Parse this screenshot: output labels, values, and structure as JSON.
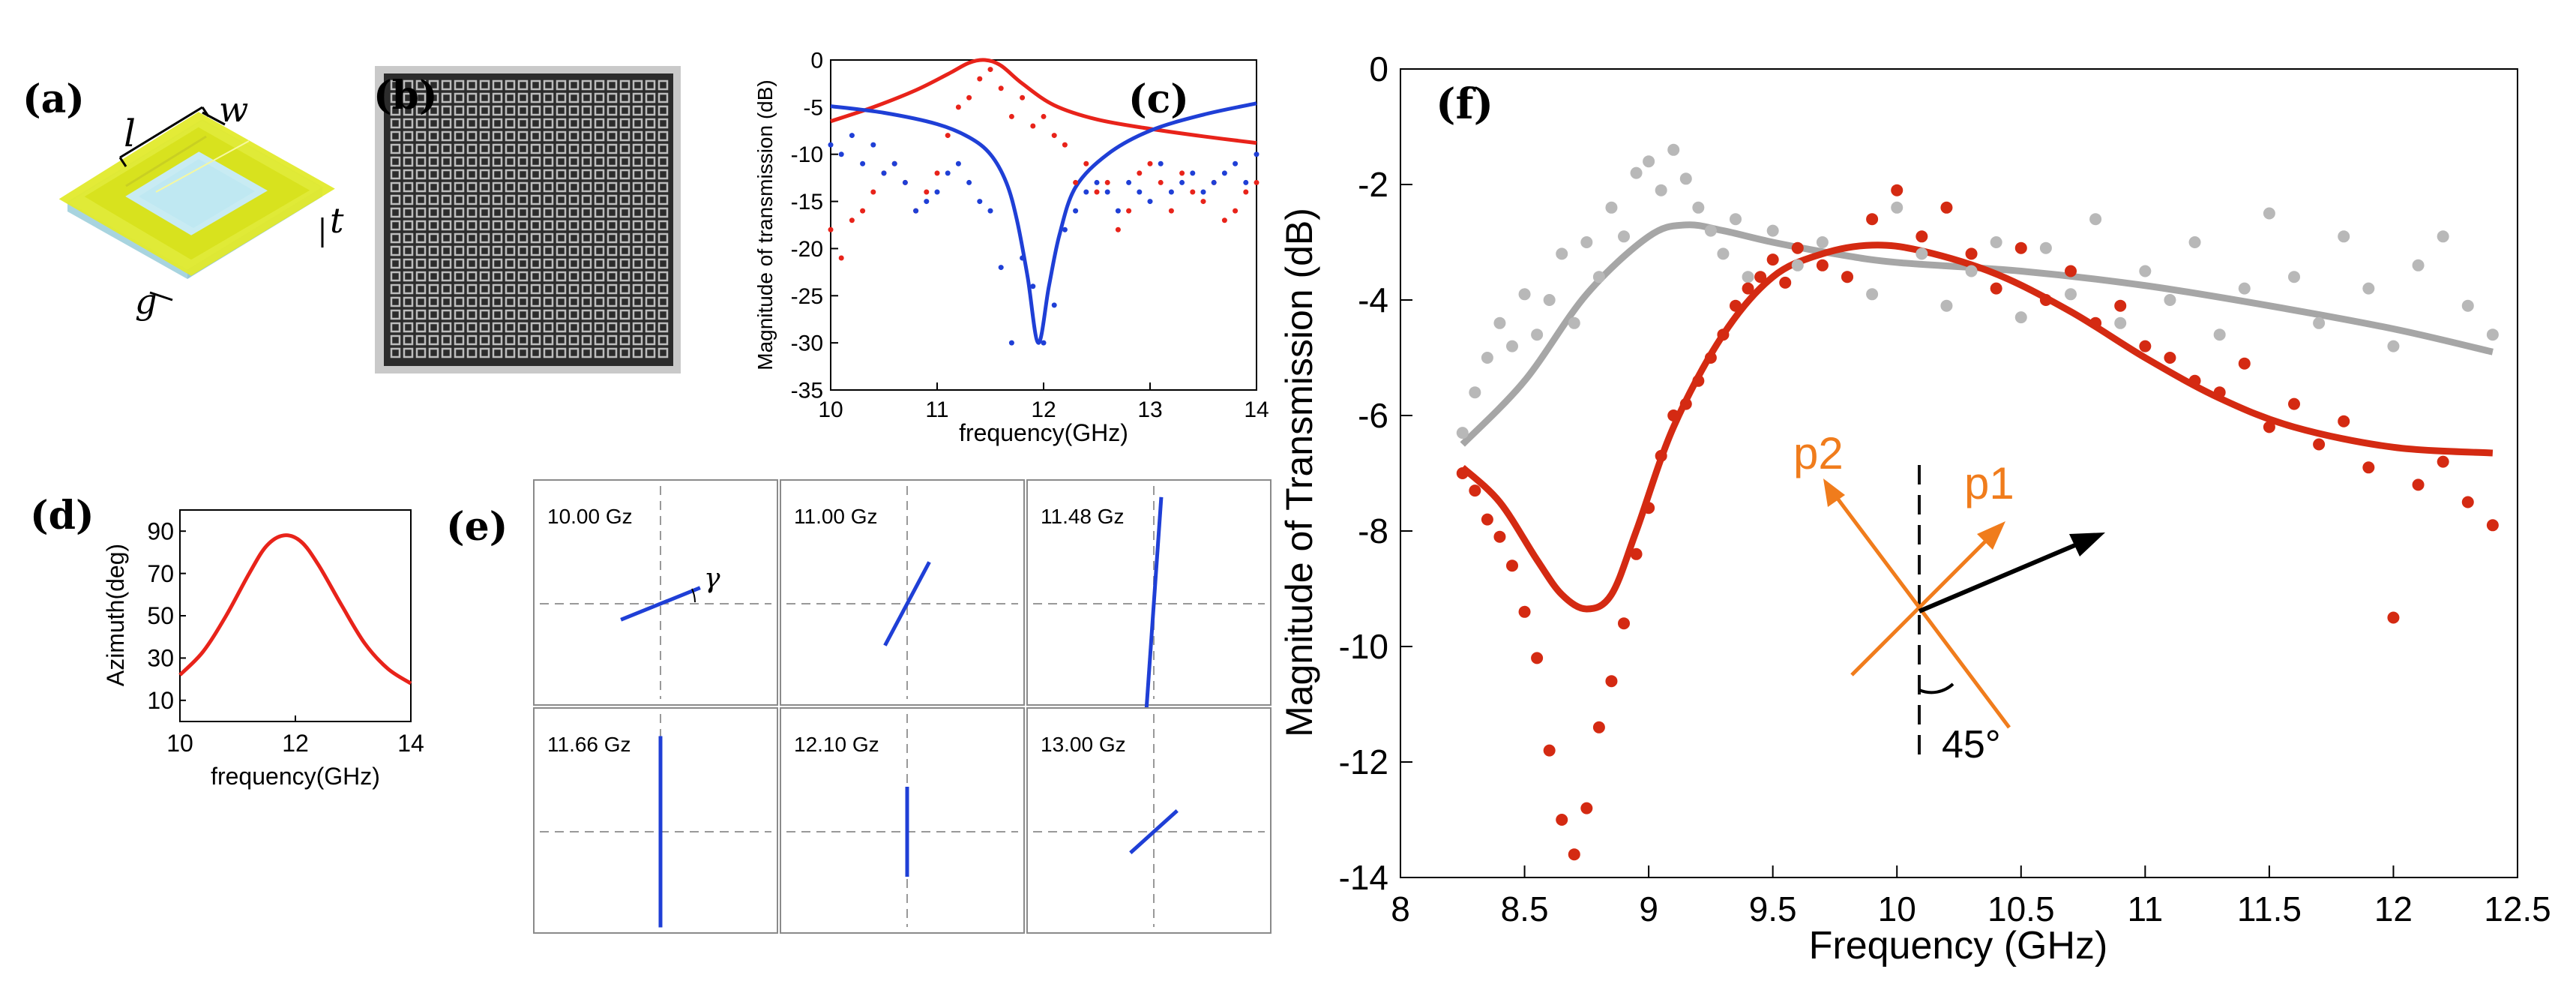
{
  "panels": {
    "a": {
      "label": "(a)",
      "dims": {
        "l": "l",
        "w": "w",
        "t": "t",
        "g": "g"
      }
    },
    "b": {
      "label": "(b)"
    },
    "c": {
      "label": "(c)"
    },
    "d": {
      "label": "(d)"
    },
    "e": {
      "label": "(e)",
      "gamma": "γ"
    },
    "f": {
      "label": "(f)",
      "p1": "p1",
      "p2": "p2",
      "angle": "45°"
    }
  },
  "chart_data": [
    {
      "id": "c",
      "type": "line",
      "xlabel": "frequency(GHz)",
      "ylabel": "Magnitude of transmission (dB)",
      "xlim": [
        10,
        14
      ],
      "ylim": [
        -35,
        0
      ],
      "xticks": [
        10,
        11,
        12,
        13,
        14
      ],
      "yticks": [
        0,
        -5,
        -10,
        -15,
        -20,
        -25,
        -30,
        -35
      ],
      "series": [
        {
          "name": "red-fit",
          "color": "#e8231a",
          "style": "line",
          "x": [
            10,
            10.4,
            10.8,
            11.1,
            11.3,
            11.45,
            11.6,
            11.8,
            12.1,
            12.5,
            13,
            13.5,
            14
          ],
          "y": [
            -6.5,
            -5,
            -3.2,
            -1.5,
            -0.3,
            0,
            -0.6,
            -2.5,
            -4.8,
            -6.3,
            -7.3,
            -8.1,
            -8.8
          ]
        },
        {
          "name": "blue-fit",
          "color": "#1f3fd6",
          "style": "line",
          "x": [
            10,
            10.5,
            11,
            11.3,
            11.5,
            11.65,
            11.75,
            11.85,
            11.95,
            12.05,
            12.15,
            12.3,
            12.6,
            13,
            13.5,
            14
          ],
          "y": [
            -4.9,
            -5.6,
            -6.8,
            -8.2,
            -10,
            -13,
            -17,
            -23,
            -30,
            -24,
            -18.5,
            -13.5,
            -10,
            -7.5,
            -5.8,
            -4.6
          ]
        },
        {
          "name": "red-measured",
          "color": "#e8231a",
          "style": "dots",
          "x": [
            10.0,
            10.1,
            10.2,
            10.3,
            10.4,
            10.5,
            10.6,
            10.7,
            10.8,
            10.9,
            11.0,
            11.1,
            11.2,
            11.3,
            11.4,
            11.5,
            11.6,
            11.7,
            11.8,
            11.9,
            12.0,
            12.1,
            12.2,
            12.3,
            12.4,
            12.5,
            12.6,
            12.7,
            12.8,
            12.9,
            13.0,
            13.1,
            13.2,
            13.3,
            13.4,
            13.5,
            13.6,
            13.7,
            13.8,
            13.9,
            14.0
          ],
          "y": [
            -18,
            -21,
            -17,
            -16,
            -14,
            -12,
            -11,
            -13,
            -16,
            -14,
            -12,
            -8,
            -5,
            -4,
            -2,
            -1,
            -3,
            -6,
            -4,
            -7,
            -6,
            -8,
            -9,
            -13,
            -11,
            -14,
            -13,
            -18,
            -16,
            -12,
            -11,
            -13,
            -16,
            -12,
            -14,
            -15,
            -13,
            -17,
            -16,
            -14,
            -13
          ]
        },
        {
          "name": "blue-measured",
          "color": "#1f3fd6",
          "style": "dots",
          "x": [
            10.0,
            10.1,
            10.2,
            10.3,
            10.4,
            10.5,
            10.6,
            10.7,
            10.8,
            10.9,
            11.0,
            11.1,
            11.2,
            11.3,
            11.4,
            11.5,
            11.6,
            11.7,
            11.8,
            11.9,
            12.0,
            12.1,
            12.2,
            12.3,
            12.4,
            12.5,
            12.6,
            12.7,
            12.8,
            12.9,
            13.0,
            13.1,
            13.2,
            13.3,
            13.4,
            13.5,
            13.6,
            13.7,
            13.8,
            13.9,
            14.0
          ],
          "y": [
            -9,
            -10,
            -8,
            -11,
            -9,
            -12,
            -11,
            -13,
            -16,
            -15,
            -14,
            -12,
            -11,
            -13,
            -15,
            -16,
            -22,
            -30,
            -21,
            -24,
            -30,
            -26,
            -18,
            -16,
            -14,
            -13,
            -14,
            -16,
            -13,
            -14,
            -15,
            -11,
            -14,
            -13,
            -12,
            -14,
            -13,
            -12,
            -11,
            -13,
            -10
          ]
        }
      ]
    },
    {
      "id": "d",
      "type": "line",
      "xlabel": "frequency(GHz)",
      "ylabel": "Azimuth(deg)",
      "xlim": [
        10,
        14
      ],
      "ylim": [
        0,
        100
      ],
      "xticks": [
        10,
        12,
        14
      ],
      "yticks": [
        90,
        70,
        50,
        30,
        10
      ],
      "series": [
        {
          "name": "azimuth",
          "color": "#e8231a",
          "x": [
            10,
            10.4,
            10.8,
            11.2,
            11.5,
            11.8,
            12.1,
            12.4,
            12.8,
            13.2,
            13.6,
            14
          ],
          "y": [
            22,
            33,
            50,
            70,
            83,
            88,
            85,
            74,
            55,
            37,
            25,
            18
          ]
        }
      ]
    },
    {
      "id": "e",
      "type": "polarization-ellipses",
      "cells": [
        {
          "label": "10.00 Gz",
          "angle_deg": 22,
          "length": 0.38
        },
        {
          "label": "11.00 Gz",
          "angle_deg": 62,
          "length": 0.42
        },
        {
          "label": "11.48 Gz",
          "angle_deg": 86,
          "length": 0.95
        },
        {
          "label": "11.66 Gz",
          "angle_deg": 90,
          "length": 0.85
        },
        {
          "label": "12.10 Gz",
          "angle_deg": 90,
          "length": 0.4
        },
        {
          "label": "13.00 Gz",
          "angle_deg": 42,
          "length": 0.28
        }
      ]
    },
    {
      "id": "f",
      "type": "line",
      "xlabel": "Frequency (GHz)",
      "ylabel": "Magnitude of Transmission (dB)",
      "xlim": [
        8,
        12.5
      ],
      "ylim": [
        -14,
        0
      ],
      "xticks": [
        8,
        8.5,
        9,
        9.5,
        10,
        10.5,
        11,
        11.5,
        12,
        12.5
      ],
      "yticks": [
        0,
        -2,
        -4,
        -6,
        -8,
        -10,
        -12,
        -14
      ],
      "series": [
        {
          "name": "gray-fit",
          "color": "#a6a6a6",
          "style": "line",
          "x": [
            8.25,
            8.5,
            8.75,
            9.0,
            9.15,
            9.3,
            9.5,
            9.75,
            10.0,
            10.5,
            11.0,
            11.5,
            12.0,
            12.4
          ],
          "y": [
            -6.5,
            -5.4,
            -3.9,
            -2.9,
            -2.7,
            -2.8,
            -3.0,
            -3.2,
            -3.35,
            -3.5,
            -3.75,
            -4.1,
            -4.5,
            -4.9
          ]
        },
        {
          "name": "red-fit",
          "color": "#d42a12",
          "style": "line",
          "x": [
            8.25,
            8.4,
            8.55,
            8.65,
            8.75,
            8.85,
            8.95,
            9.1,
            9.3,
            9.5,
            9.7,
            9.9,
            10.1,
            10.4,
            10.7,
            11.0,
            11.3,
            11.6,
            12.0,
            12.4
          ],
          "y": [
            -6.9,
            -7.5,
            -8.5,
            -9.1,
            -9.35,
            -9.1,
            -8.0,
            -6.2,
            -4.6,
            -3.6,
            -3.2,
            -3.05,
            -3.15,
            -3.55,
            -4.2,
            -5.0,
            -5.7,
            -6.2,
            -6.55,
            -6.65
          ]
        },
        {
          "name": "gray-measured",
          "color": "#b8b8b8",
          "style": "dots",
          "x": [
            8.25,
            8.3,
            8.35,
            8.4,
            8.45,
            8.5,
            8.55,
            8.6,
            8.65,
            8.7,
            8.75,
            8.8,
            8.85,
            8.9,
            8.95,
            9.0,
            9.05,
            9.1,
            9.15,
            9.2,
            9.25,
            9.3,
            9.35,
            9.4,
            9.5,
            9.6,
            9.7,
            9.8,
            9.9,
            10.0,
            10.1,
            10.2,
            10.3,
            10.4,
            10.5,
            10.6,
            10.7,
            10.8,
            10.9,
            11.0,
            11.1,
            11.2,
            11.3,
            11.4,
            11.5,
            11.6,
            11.7,
            11.8,
            11.9,
            12.0,
            12.1,
            12.2,
            12.3,
            12.4
          ],
          "y": [
            -6.3,
            -5.6,
            -5.0,
            -4.4,
            -4.8,
            -3.9,
            -4.6,
            -4.0,
            -3.2,
            -4.4,
            -3.0,
            -3.6,
            -2.4,
            -2.9,
            -1.8,
            -1.6,
            -2.1,
            -1.4,
            -1.9,
            -2.4,
            -2.8,
            -3.2,
            -2.6,
            -3.6,
            -2.8,
            -3.4,
            -3.0,
            -3.6,
            -3.9,
            -2.4,
            -3.2,
            -4.1,
            -3.5,
            -3.0,
            -4.3,
            -3.1,
            -3.9,
            -2.6,
            -4.4,
            -3.5,
            -4.0,
            -3.0,
            -4.6,
            -3.8,
            -2.5,
            -3.6,
            -4.4,
            -2.9,
            -3.8,
            -4.8,
            -3.4,
            -2.9,
            -4.1,
            -4.6
          ]
        },
        {
          "name": "red-measured",
          "color": "#d42a12",
          "style": "dots",
          "x": [
            8.25,
            8.3,
            8.35,
            8.4,
            8.45,
            8.5,
            8.55,
            8.6,
            8.65,
            8.7,
            8.75,
            8.8,
            8.85,
            8.9,
            8.95,
            9.0,
            9.05,
            9.1,
            9.15,
            9.2,
            9.25,
            9.3,
            9.35,
            9.4,
            9.45,
            9.5,
            9.55,
            9.6,
            9.7,
            9.8,
            9.9,
            10.0,
            10.1,
            10.2,
            10.3,
            10.4,
            10.5,
            10.6,
            10.7,
            10.8,
            10.9,
            11.0,
            11.1,
            11.2,
            11.3,
            11.4,
            11.5,
            11.6,
            11.7,
            11.8,
            11.9,
            12.0,
            12.1,
            12.2,
            12.3,
            12.4
          ],
          "y": [
            -7.0,
            -7.3,
            -7.8,
            -8.1,
            -8.6,
            -9.4,
            -10.2,
            -11.8,
            -13.0,
            -13.6,
            -12.8,
            -11.4,
            -10.6,
            -9.6,
            -8.4,
            -7.6,
            -6.7,
            -6.0,
            -5.8,
            -5.4,
            -5.0,
            -4.6,
            -4.1,
            -3.8,
            -3.6,
            -3.3,
            -3.7,
            -3.1,
            -3.4,
            -3.6,
            -2.6,
            -2.1,
            -2.9,
            -2.4,
            -3.2,
            -3.8,
            -3.1,
            -4.0,
            -3.5,
            -4.4,
            -4.1,
            -4.8,
            -5.0,
            -5.4,
            -5.6,
            -5.1,
            -6.2,
            -5.8,
            -6.5,
            -6.1,
            -6.9,
            -9.5,
            -7.2,
            -6.8,
            -7.5,
            -7.9
          ]
        }
      ]
    }
  ]
}
